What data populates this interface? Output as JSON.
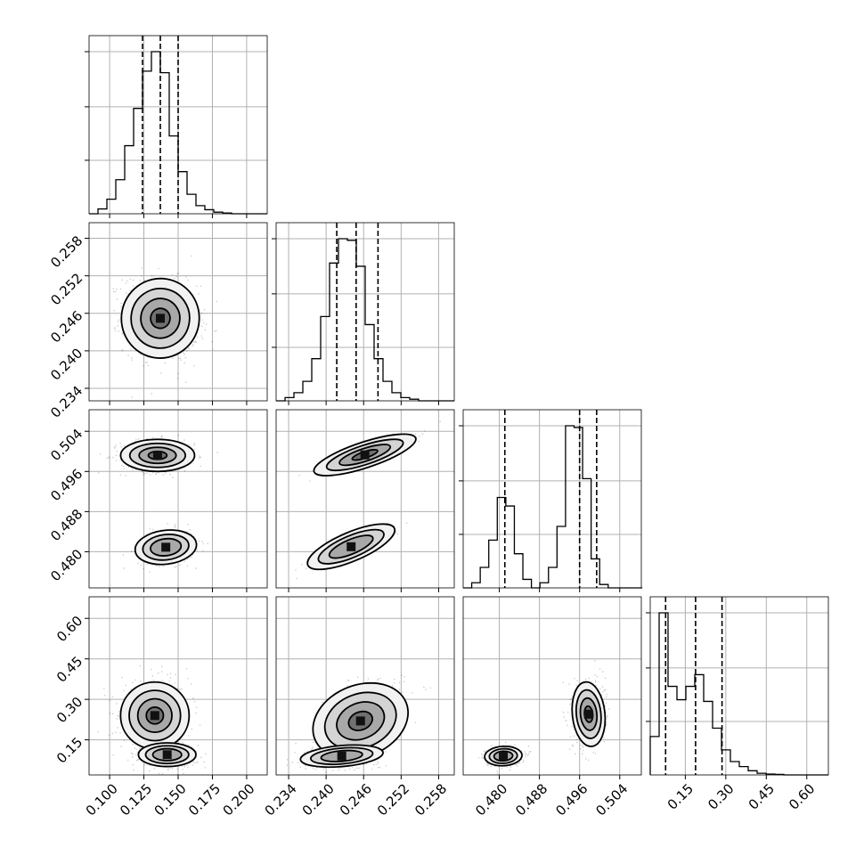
{
  "chart_data": {
    "type": "corner",
    "parameters": [
      {
        "range": [
          0.085,
          0.215
        ],
        "ticks": [
          0.1,
          0.125,
          0.15,
          0.175,
          0.2
        ],
        "tick_labels": [
          "0.100",
          "0.125",
          "0.150",
          "0.175",
          "0.200"
        ],
        "quantiles": [
          0.124,
          0.137,
          0.15
        ],
        "hist": {
          "edges_start": 0.085,
          "bin_width": 0.0065,
          "counts": [
            0,
            0.03,
            0.09,
            0.21,
            0.42,
            0.65,
            0.88,
            1.0,
            0.87,
            0.48,
            0.26,
            0.12,
            0.05,
            0.025,
            0.01,
            0.005,
            0,
            0,
            0,
            0
          ]
        }
      },
      {
        "range": [
          0.232,
          0.2605
        ],
        "ticks": [
          0.234,
          0.24,
          0.246,
          0.252,
          0.258
        ],
        "tick_labels": [
          "0.234",
          "0.240",
          "0.246",
          "0.252",
          "0.258"
        ],
        "quantiles": [
          0.2417,
          0.2448,
          0.2483
        ],
        "hist": {
          "edges_start": 0.232,
          "bin_width": 0.001425,
          "counts": [
            0,
            0.02,
            0.05,
            0.12,
            0.26,
            0.52,
            0.85,
            1.0,
            0.99,
            0.83,
            0.47,
            0.26,
            0.12,
            0.05,
            0.02,
            0.01,
            0,
            0,
            0,
            0
          ]
        }
      },
      {
        "range": [
          0.4728,
          0.5083
        ],
        "ticks": [
          0.48,
          0.488,
          0.496,
          0.504
        ],
        "tick_labels": [
          "0.480",
          "0.488",
          "0.496",
          "0.504"
        ],
        "quantiles": [
          0.4811,
          0.496,
          0.4994
        ],
        "hist": {
          "edges_start": 0.4728,
          "bin_width": 0.0017,
          "counts": [
            0,
            0.03,
            0.12,
            0.28,
            0.53,
            0.48,
            0.2,
            0.05,
            0,
            0.03,
            0.12,
            0.36,
            0.95,
            0.94,
            0.64,
            0.17,
            0.02,
            0,
            0,
            0,
            0
          ]
        }
      },
      {
        "range": [
          0.02,
          0.68
        ],
        "ticks": [
          0.15,
          0.3,
          0.45,
          0.6
        ],
        "tick_labels": [
          "0.15",
          "0.30",
          "0.45",
          "0.60"
        ],
        "quantiles": [
          0.077,
          0.188,
          0.286
        ],
        "hist": {
          "edges_start": 0.02,
          "bin_width": 0.033,
          "counts": [
            0.23,
            0.97,
            0.53,
            0.45,
            0.53,
            0.6,
            0.44,
            0.28,
            0.15,
            0.08,
            0.05,
            0.025,
            0.01,
            0.005,
            0.003,
            0,
            0,
            0,
            0,
            0
          ]
        }
      }
    ],
    "pairs": [
      {
        "row": 1,
        "col": 0,
        "clusters": [
          {
            "cx": 0.137,
            "cy": 0.2452,
            "sx": 0.0135,
            "sy": 0.0032,
            "rho": -0.15,
            "weight": 1.0
          }
        ]
      },
      {
        "row": 2,
        "col": 0,
        "clusters": [
          {
            "cx": 0.135,
            "cy": 0.4992,
            "sx": 0.0135,
            "sy": 0.0016,
            "rho": 0.0,
            "weight": 0.62
          },
          {
            "cx": 0.141,
            "cy": 0.4809,
            "sx": 0.0105,
            "sy": 0.0017,
            "rho": 0.2,
            "weight": 0.38
          }
        ]
      },
      {
        "row": 2,
        "col": 1,
        "clusters": [
          {
            "cx": 0.2462,
            "cy": 0.4993,
            "sx": 0.0033,
            "sy": 0.0016,
            "rho": 0.85,
            "weight": 0.62
          },
          {
            "cx": 0.244,
            "cy": 0.481,
            "sx": 0.0029,
            "sy": 0.0018,
            "rho": 0.85,
            "weight": 0.38
          }
        ]
      },
      {
        "row": 3,
        "col": 0,
        "clusters": [
          {
            "cx": 0.133,
            "cy": 0.24,
            "sx": 0.0125,
            "sy": 0.062,
            "rho": 0.0,
            "weight": 0.62
          },
          {
            "cx": 0.142,
            "cy": 0.095,
            "sx": 0.0105,
            "sy": 0.022,
            "rho": 0.0,
            "weight": 0.38
          }
        ]
      },
      {
        "row": 3,
        "col": 1,
        "clusters": [
          {
            "cx": 0.2455,
            "cy": 0.22,
            "sx": 0.0034,
            "sy": 0.07,
            "rho": 0.45,
            "weight": 0.62
          },
          {
            "cx": 0.2425,
            "cy": 0.09,
            "sx": 0.003,
            "sy": 0.02,
            "rho": 0.3,
            "weight": 0.38
          }
        ]
      },
      {
        "row": 3,
        "col": 2,
        "clusters": [
          {
            "cx": 0.4978,
            "cy": 0.245,
            "sx": 0.0016,
            "sy": 0.06,
            "rho": 0.05,
            "weight": 0.62
          },
          {
            "cx": 0.4808,
            "cy": 0.09,
            "sx": 0.0018,
            "sy": 0.018,
            "rho": 0.1,
            "weight": 0.38
          }
        ]
      }
    ],
    "grid": true,
    "title": "",
    "axis_labels": []
  }
}
